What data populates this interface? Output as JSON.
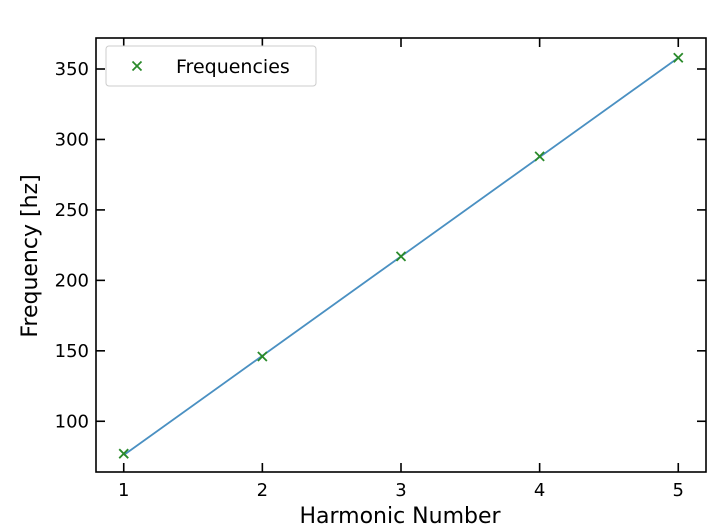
{
  "chart_data": {
    "type": "line",
    "title": "",
    "xlabel": "Harmonic Number",
    "ylabel": "Frequency [hz]",
    "xlim": [
      0.8,
      5.2
    ],
    "ylim": [
      64,
      372
    ],
    "xticks": [
      1,
      2,
      3,
      4,
      5
    ],
    "yticks": [
      100,
      150,
      200,
      250,
      300,
      350
    ],
    "grid": false,
    "legend": {
      "position": "top-left",
      "entries": [
        "Frequencies"
      ]
    },
    "series": [
      {
        "name": "Frequencies",
        "kind": "scatter",
        "marker": "x",
        "color": "#2a8a2a",
        "x": [
          1,
          2,
          3,
          4,
          5
        ],
        "y": [
          77,
          146,
          217,
          288,
          358
        ]
      },
      {
        "kind": "line",
        "color": "#4a90c2",
        "x": [
          1,
          5
        ],
        "y": [
          76,
          358
        ]
      }
    ]
  }
}
